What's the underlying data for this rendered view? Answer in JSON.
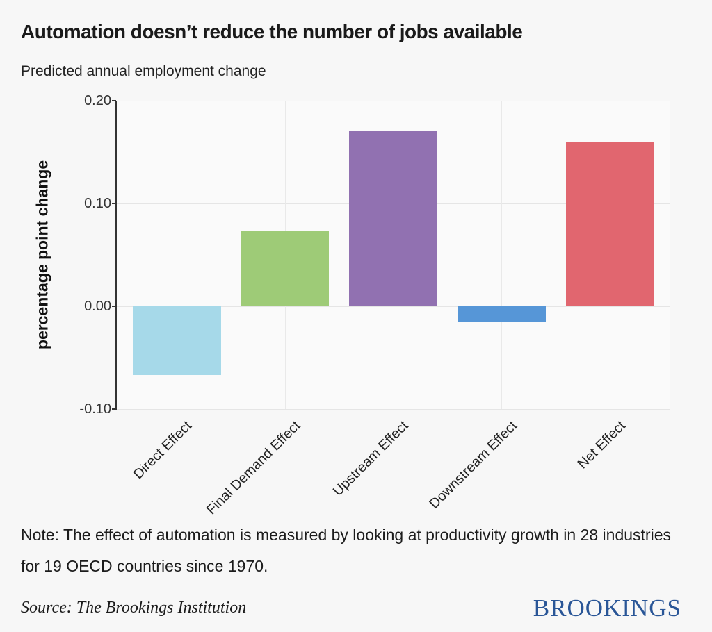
{
  "header": {
    "title": "Automation doesn’t reduce the number of jobs available",
    "subtitle": "Predicted annual employment change"
  },
  "chart_data": {
    "type": "bar",
    "title": "Automation doesn’t reduce the number of jobs available",
    "subtitle": "Predicted annual employment change",
    "categories": [
      "Direct Effect",
      "Final Demand Effect",
      "Upstream Effect",
      "Downstream Effect",
      "Net Effect"
    ],
    "values": [
      -0.067,
      0.073,
      0.17,
      -0.015,
      0.16
    ],
    "bar_colors": [
      "#a3d8e8",
      "#9bc973",
      "#8d6cae",
      "#5193d6",
      "#e0616a"
    ],
    "xlabel": "",
    "ylabel": "percentage point change",
    "ylim": [
      -0.1,
      0.2
    ],
    "yticks": [
      0.2,
      0.1,
      0.0,
      -0.1
    ],
    "ytick_labels": [
      "0.20",
      "0.10",
      "0.00",
      "-0.10"
    ],
    "grid": "on",
    "legend": "none"
  },
  "note": {
    "text": "Note: The effect of automation is measured by looking at productivity growth in 28 industries for 19 OECD countries since 1970."
  },
  "source": {
    "text": "Source: The Brookings Institution"
  },
  "logo": {
    "text": "BROOKINGS",
    "color": "#2a5697"
  },
  "colors": {
    "background": "#f7f7f7",
    "panel": "#fafafa",
    "gridline": "#e7e7e7",
    "axis": "#333333",
    "text": "#1a1a1a"
  }
}
